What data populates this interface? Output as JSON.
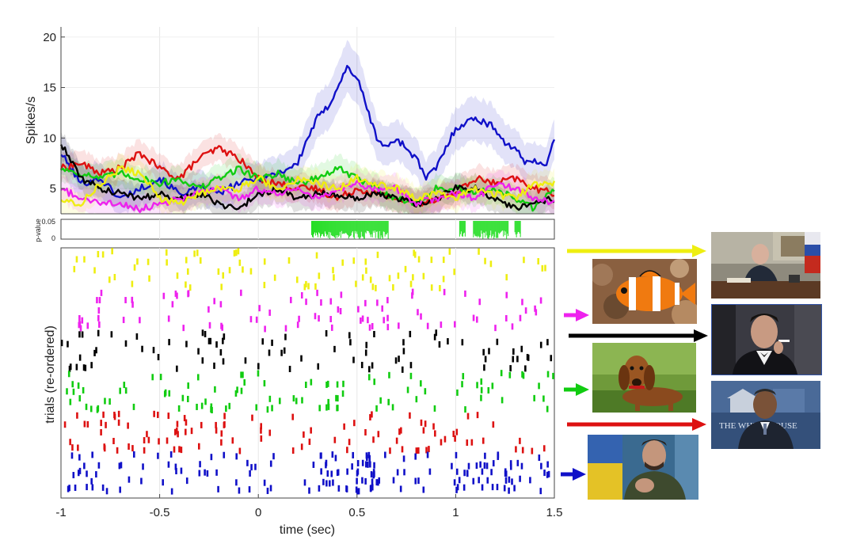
{
  "chart_data": [
    {
      "type": "line",
      "panel": "psth",
      "ylabel": "Spikes/s",
      "xlim": [
        -1,
        1.5
      ],
      "ylim": [
        2.5,
        21
      ],
      "yticks": [
        5,
        10,
        15,
        20
      ],
      "grid": true,
      "series": [
        {
          "color": "#1010c8",
          "x": [
            -1,
            -0.9,
            -0.8,
            -0.7,
            -0.6,
            -0.5,
            -0.4,
            -0.3,
            -0.2,
            -0.1,
            0,
            0.1,
            0.2,
            0.25,
            0.3,
            0.35,
            0.4,
            0.45,
            0.5,
            0.55,
            0.6,
            0.65,
            0.7,
            0.75,
            0.8,
            0.85,
            0.9,
            0.95,
            1.0,
            1.05,
            1.1,
            1.15,
            1.2,
            1.25,
            1.3,
            1.35,
            1.4,
            1.45,
            1.5
          ],
          "y": [
            8.5,
            5.5,
            6,
            4,
            5,
            6,
            4.5,
            5,
            4.5,
            5.5,
            6,
            6.5,
            7.5,
            10,
            12,
            13,
            15,
            17,
            16,
            13,
            10,
            9,
            10,
            9,
            8,
            6,
            7,
            9,
            11,
            11.5,
            12,
            11.5,
            11,
            9.5,
            9,
            7.5,
            8,
            7,
            10
          ]
        },
        {
          "color": "#dd1111",
          "x": [
            -1,
            -0.9,
            -0.8,
            -0.7,
            -0.6,
            -0.5,
            -0.4,
            -0.3,
            -0.2,
            -0.1,
            0,
            0.1,
            0.2,
            0.3,
            0.4,
            0.5,
            0.6,
            0.7,
            0.8,
            0.9,
            1.0,
            1.1,
            1.2,
            1.3,
            1.4,
            1.5
          ],
          "y": [
            7,
            7.5,
            6.5,
            7,
            8.5,
            7,
            6,
            8,
            9,
            8,
            6,
            5.5,
            5,
            5,
            4,
            5,
            4.5,
            4,
            3.5,
            4,
            4.5,
            6,
            5.5,
            6,
            5,
            4.5
          ]
        },
        {
          "color": "#11cc11",
          "x": [
            -1,
            -0.9,
            -0.8,
            -0.7,
            -0.6,
            -0.5,
            -0.4,
            -0.3,
            -0.2,
            -0.1,
            0,
            0.1,
            0.2,
            0.3,
            0.4,
            0.5,
            0.6,
            0.7,
            0.8,
            0.9,
            1.0,
            1.1,
            1.2,
            1.3,
            1.4,
            1.5
          ],
          "y": [
            7,
            6.5,
            6,
            6.5,
            6,
            5.5,
            6,
            5,
            6,
            7,
            6,
            6.5,
            5.5,
            6,
            7,
            6,
            5,
            4,
            3.5,
            5,
            5,
            4.5,
            5,
            4,
            3,
            5
          ]
        },
        {
          "color": "#000000",
          "x": [
            -1,
            -0.9,
            -0.8,
            -0.7,
            -0.6,
            -0.5,
            -0.4,
            -0.3,
            -0.2,
            -0.1,
            0,
            0.1,
            0.2,
            0.3,
            0.4,
            0.5,
            0.6,
            0.7,
            0.8,
            0.9,
            1.0,
            1.1,
            1.2,
            1.3,
            1.4,
            1.5
          ],
          "y": [
            9.5,
            6,
            5,
            4.5,
            4,
            4.5,
            4,
            4.5,
            3.5,
            3,
            4.5,
            5,
            4,
            4.5,
            4.5,
            4,
            4.5,
            4,
            3.5,
            4,
            5,
            5,
            4,
            3,
            3.5,
            4
          ]
        },
        {
          "color": "#ee22ee",
          "x": [
            -1,
            -0.9,
            -0.8,
            -0.7,
            -0.6,
            -0.5,
            -0.4,
            -0.3,
            -0.2,
            -0.1,
            0,
            0.1,
            0.2,
            0.3,
            0.4,
            0.5,
            0.6,
            0.7,
            0.8,
            0.9,
            1.0,
            1.1,
            1.2,
            1.3,
            1.4,
            1.5
          ],
          "y": [
            5,
            4,
            3.5,
            3.5,
            3,
            3.5,
            4,
            4.5,
            5,
            4,
            5,
            4.5,
            5,
            4,
            5,
            5.5,
            5,
            5,
            3.5,
            4,
            4.5,
            4,
            5.5,
            5,
            4,
            3.5
          ]
        },
        {
          "color": "#eeee11",
          "x": [
            -1,
            -0.9,
            -0.8,
            -0.7,
            -0.6,
            -0.5,
            -0.4,
            -0.3,
            -0.2,
            -0.1,
            0,
            0.1,
            0.2,
            0.3,
            0.4,
            0.5,
            0.6,
            0.7,
            0.8,
            0.9,
            1.0,
            1.1,
            1.2,
            1.3,
            1.4,
            1.5
          ],
          "y": [
            4,
            3.5,
            5.5,
            7,
            6.5,
            4,
            3.5,
            4.5,
            5,
            5,
            6,
            5,
            6,
            5.5,
            5,
            6,
            5.5,
            5,
            4,
            4.5,
            4,
            5,
            4.5,
            4,
            5.5,
            5.5
          ]
        }
      ]
    },
    {
      "type": "bar",
      "panel": "pvalue",
      "ylabel": "p-value",
      "yticks": [
        0,
        0.05
      ],
      "ylim": [
        0,
        0.05
      ],
      "xlim": [
        -1,
        1.5
      ],
      "color": "#22dd22",
      "significant_ranges": [
        [
          0.27,
          0.66
        ],
        [
          1.02,
          1.05
        ],
        [
          1.09,
          1.27
        ],
        [
          1.3,
          1.33
        ]
      ]
    },
    {
      "type": "scatter",
      "panel": "raster",
      "ylabel": "trials (re-ordered)",
      "xlabel": "time (sec)",
      "xlim": [
        -1,
        1.5
      ],
      "xticks": [
        -1,
        -0.5,
        0,
        0.5,
        1,
        1.5
      ],
      "tick_labels": [
        "-1",
        "-0.5",
        "0",
        "0.5",
        "1",
        "1.5"
      ],
      "grid": true,
      "groups": [
        {
          "color": "#eeee11",
          "trials": 5,
          "seed": 11,
          "rate": 7
        },
        {
          "color": "#ee22ee",
          "trials": 5,
          "seed": 23,
          "rate": 7
        },
        {
          "color": "#000000",
          "trials": 5,
          "seed": 37,
          "rate": 7
        },
        {
          "color": "#11cc11",
          "trials": 5,
          "seed": 41,
          "rate": 8
        },
        {
          "color": "#dd1111",
          "trials": 5,
          "seed": 53,
          "rate": 8
        },
        {
          "color": "#1010c8",
          "trials": 5,
          "seed": 67,
          "rate": 8,
          "response_window": [
            0.3,
            0.6
          ],
          "response_rate": 25,
          "late_window": [
            1.0,
            1.3
          ],
          "late_rate": 15
        }
      ]
    }
  ],
  "stimuli": [
    {
      "name": "photo-politician-desk",
      "color": "#eeee11"
    },
    {
      "name": "photo-clownfish",
      "color": "#ee22ee"
    },
    {
      "name": "photo-man-in-tuxedo",
      "color": "#000000"
    },
    {
      "name": "photo-dachshund",
      "color": "#11cc11"
    },
    {
      "name": "photo-man-at-podium",
      "color": "#dd1111"
    },
    {
      "name": "photo-man-with-flag",
      "color": "#1010c8"
    }
  ],
  "photo_text": {
    "podium_sign": "THE WHITE HOUSE"
  }
}
